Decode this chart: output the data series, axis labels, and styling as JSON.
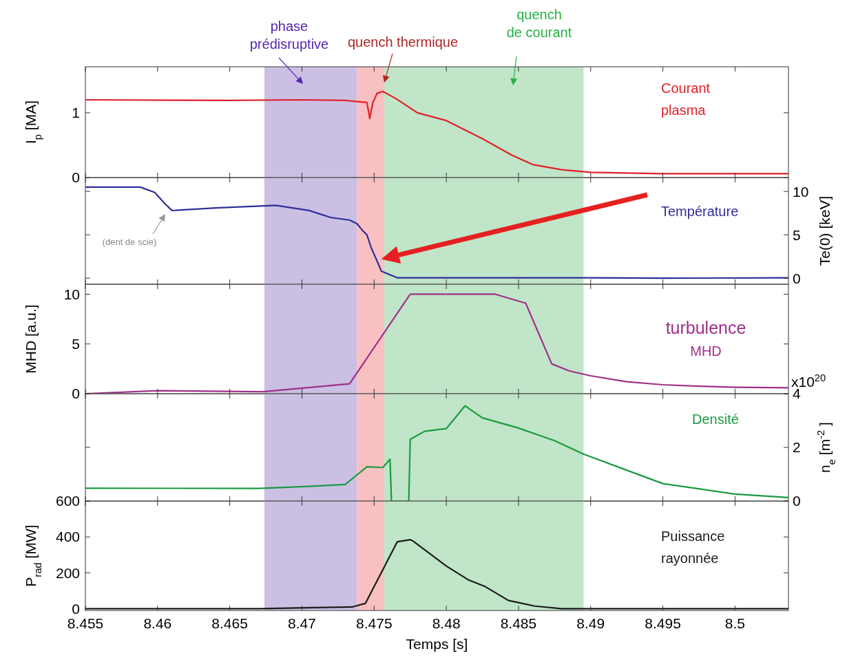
{
  "chart_data": [
    {
      "type": "line",
      "ylabel": "I$_{p}$ [MA]",
      "xlim": [
        8.455,
        8.5037
      ],
      "xticks": [
        8.455,
        8.46,
        8.465,
        8.47,
        8.475,
        8.48,
        8.485,
        8.49,
        8.495,
        8.5
      ],
      "ylim": [
        0,
        1.71
      ],
      "yticks": [
        0,
        1
      ],
      "tick_labels": "y",
      "bands": [
        {
          "axis": "x",
          "from": 8.4674,
          "to": 8.4738,
          "label": "phase prédisruptive",
          "color": "#cbbfe3"
        },
        {
          "axis": "x",
          "from": 8.4738,
          "to": 8.4757,
          "label": "quench thermique",
          "color": "#f8c0c0"
        },
        {
          "axis": "x",
          "from": 8.4757,
          "to": 8.4895,
          "label": "quench de courant",
          "color": "#c0e5c8"
        }
      ],
      "series": [
        {
          "name": "Courant plasma",
          "color": "#e0202a",
          "x": [
            8.455,
            8.465,
            8.47,
            8.473,
            8.4745,
            8.4747,
            8.4749,
            8.4752,
            8.4756,
            8.4765,
            8.478,
            8.48,
            8.4825,
            8.4845,
            8.486,
            8.488,
            8.49,
            8.495,
            8.5037
          ],
          "values": [
            1.2,
            1.19,
            1.2,
            1.19,
            1.16,
            0.91,
            1.15,
            1.3,
            1.33,
            1.22,
            1.0,
            0.88,
            0.6,
            0.35,
            0.2,
            0.12,
            0.08,
            0.06,
            0.06
          ]
        }
      ]
    },
    {
      "type": "line",
      "y2label": "Te(0) [keV]",
      "xlim": [
        8.455,
        8.5037
      ],
      "xticks": [
        8.455,
        8.46,
        8.465,
        8.47,
        8.475,
        8.48,
        8.485,
        8.49,
        8.495,
        8.5
      ],
      "y2lim": [
        -0.7,
        11.6
      ],
      "y2ticks": [
        0,
        5,
        10
      ],
      "tick_labels": "y",
      "bands": [
        {
          "axis": "x",
          "from": 8.4674,
          "to": 8.4738,
          "color": "#cbbfe3"
        },
        {
          "axis": "x",
          "from": 8.4738,
          "to": 8.4757,
          "color": "#f8c0c0"
        },
        {
          "axis": "x",
          "from": 8.4757,
          "to": 8.4895,
          "color": "#c0e5c8"
        }
      ],
      "annotations": [
        "(dent de scie)"
      ],
      "series": [
        {
          "name": "Température",
          "color": "#2e2e9a",
          "axis": "y2",
          "x": [
            8.455,
            8.4588,
            8.4598,
            8.4605,
            8.461,
            8.464,
            8.4682,
            8.4705,
            8.472,
            8.4733,
            8.4738,
            8.4742,
            8.4745,
            8.4748,
            8.4752,
            8.4755,
            8.4766,
            8.478,
            8.49,
            8.495,
            8.5037
          ],
          "values": [
            10.5,
            10.5,
            9.9,
            8.6,
            7.8,
            8.1,
            8.4,
            7.8,
            7.0,
            6.7,
            6.3,
            5.5,
            5.0,
            3.5,
            2.0,
            0.8,
            0.05,
            0.05,
            0.05,
            0.0,
            0.05
          ]
        }
      ]
    },
    {
      "type": "line",
      "ylabel": "MHD [a.u.]",
      "xlim": [
        8.455,
        8.5037
      ],
      "xticks": [
        8.455,
        8.46,
        8.465,
        8.47,
        8.475,
        8.48,
        8.485,
        8.49,
        8.495,
        8.5
      ],
      "ylim": [
        0,
        11
      ],
      "yticks": [
        0,
        5,
        10
      ],
      "tick_labels": "y",
      "bands": [
        {
          "axis": "x",
          "from": 8.4674,
          "to": 8.4738,
          "color": "#cbbfe3"
        },
        {
          "axis": "x",
          "from": 8.4738,
          "to": 8.4757,
          "color": "#f8c0c0"
        },
        {
          "axis": "x",
          "from": 8.4757,
          "to": 8.4895,
          "color": "#c0e5c8"
        }
      ],
      "series": [
        {
          "name": "turbulence MHD",
          "color": "#a0308a",
          "x": [
            8.455,
            8.46,
            8.4673,
            8.4733,
            8.4775,
            8.4834,
            8.4855,
            8.4873,
            8.4885,
            8.49,
            8.4925,
            8.495,
            8.4975,
            8.5,
            8.5037
          ],
          "values": [
            0,
            0.3,
            0.2,
            1.0,
            10,
            10,
            9.1,
            3.0,
            2.3,
            1.8,
            1.2,
            0.9,
            0.75,
            0.65,
            0.6
          ]
        }
      ]
    },
    {
      "type": "line",
      "y2label": "n$_{e}$ [m$^{-2}$]",
      "xlim": [
        8.455,
        8.5037
      ],
      "xticks": [
        8.455,
        8.46,
        8.465,
        8.47,
        8.475,
        8.48,
        8.485,
        8.49,
        8.495,
        8.5
      ],
      "y2lim": [
        0,
        4
      ],
      "y2ticks": [
        0,
        2,
        4
      ],
      "tick_labels": "y",
      "bands": [
        {
          "axis": "x",
          "from": 8.4674,
          "to": 8.4738,
          "color": "#cbbfe3"
        },
        {
          "axis": "x",
          "from": 8.4738,
          "to": 8.4757,
          "color": "#f8c0c0"
        },
        {
          "axis": "x",
          "from": 8.4757,
          "to": 8.4895,
          "color": "#c0e5c8"
        }
      ],
      "annotations": [
        "x10$^{20}$"
      ],
      "series": [
        {
          "name": "Densité",
          "color": "#1a9a40",
          "axis": "y2",
          "x": [
            8.455,
            8.467,
            8.4705,
            8.473,
            8.4745,
            8.4756,
            8.4761,
            8.4762,
            8.4774,
            8.4775,
            8.4785,
            8.48,
            8.4813,
            8.4825,
            8.485,
            8.4875,
            8.4895,
            8.4925,
            8.495,
            8.5,
            8.5037
          ],
          "values": [
            0.48,
            0.47,
            0.55,
            0.62,
            1.28,
            1.25,
            1.56,
            0,
            0,
            2.3,
            2.6,
            2.7,
            3.55,
            3.1,
            2.72,
            2.25,
            1.75,
            1.15,
            0.65,
            0.26,
            0.13
          ]
        }
      ]
    },
    {
      "type": "line",
      "ylabel": "P$_{rad}$ [MW]",
      "xlabel": "Temps [s]",
      "xlim": [
        8.455,
        8.5037
      ],
      "xticks": [
        8.455,
        8.46,
        8.465,
        8.47,
        8.475,
        8.48,
        8.485,
        8.49,
        8.495,
        8.5
      ],
      "ylim": [
        -10,
        600
      ],
      "yticks": [
        0,
        200,
        400,
        600
      ],
      "bands": [
        {
          "axis": "x",
          "from": 8.4674,
          "to": 8.4738,
          "color": "#cbbfe3"
        },
        {
          "axis": "x",
          "from": 8.4738,
          "to": 8.4757,
          "color": "#f8c0c0"
        },
        {
          "axis": "x",
          "from": 8.4757,
          "to": 8.4895,
          "color": "#c0e5c8"
        }
      ],
      "series": [
        {
          "name": "Puissance rayonnée",
          "color": "#1a1a1a",
          "x": [
            8.455,
            8.467,
            8.47,
            8.4735,
            8.4744,
            8.4766,
            8.4775,
            8.4777,
            8.48,
            8.4815,
            8.4827,
            8.4843,
            8.4861,
            8.488,
            8.495,
            8.5037
          ],
          "values": [
            0,
            0,
            5,
            10,
            30,
            373,
            385,
            377,
            238,
            162,
            123,
            46,
            15,
            0,
            0,
            0
          ]
        }
      ]
    }
  ]
}
